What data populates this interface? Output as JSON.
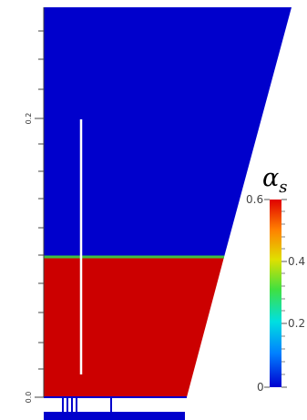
{
  "figure": {
    "axis_ticks": [
      "0.0",
      "0.2"
    ],
    "colorbar": {
      "symbol": "α",
      "subscript": "s",
      "ticks": [
        {
          "label": "0.6",
          "value": 0.6
        },
        {
          "label": "0.4",
          "value": 0.4
        },
        {
          "label": "0.2",
          "value": 0.2
        },
        {
          "label": "0",
          "value": 0.0
        }
      ],
      "range": [
        0,
        0.6
      ],
      "colors": [
        "#0000d0",
        "#00a0ff",
        "#00e0c0",
        "#40e040",
        "#e0e000",
        "#ff9000",
        "#e00000"
      ]
    },
    "colors": {
      "gas_region": "#0000cc",
      "solid_region": "#cc0000",
      "interface": "#40c040",
      "probe_line": "#ffffff",
      "frame": "#333333"
    }
  }
}
